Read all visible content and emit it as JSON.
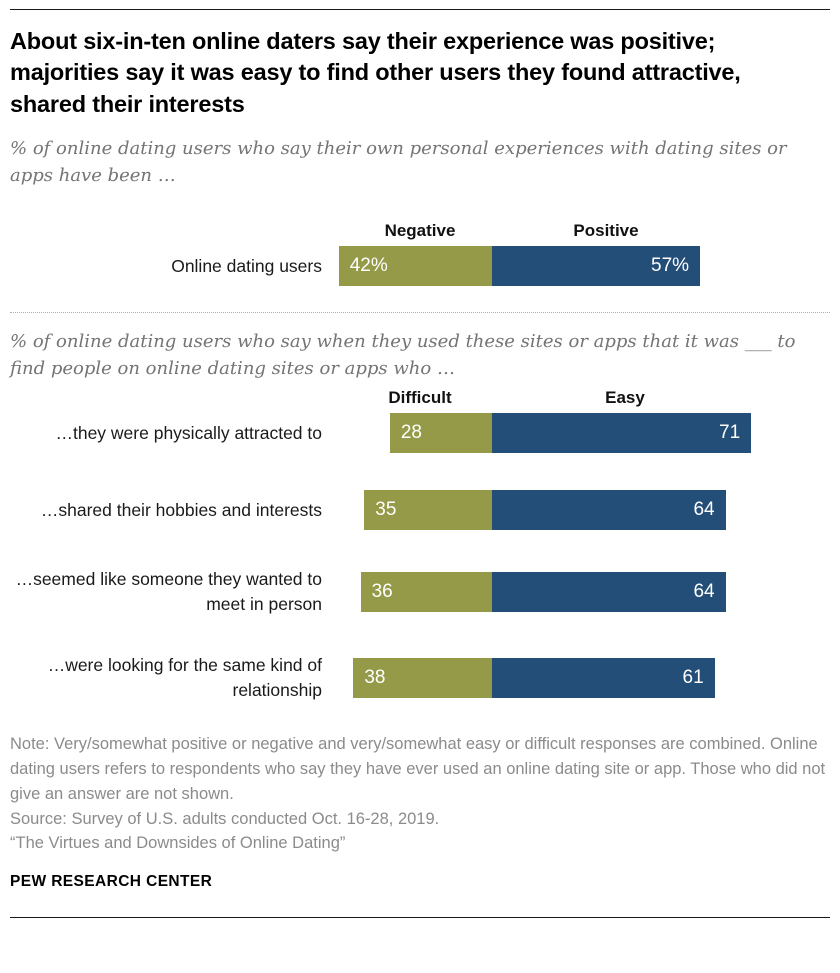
{
  "page": {
    "title": "About six-in-ten online daters say their experience was positive; majorities say it was easy to find other users they found attractive, shared their interests"
  },
  "colors": {
    "negative_olive": "#949A48",
    "positive_navy": "#234E77"
  },
  "chart_data": [
    {
      "type": "bar",
      "orientation": "horizontal-diverging",
      "subtitle": "% of online dating users who say their own personal experiences with dating sites or apps have been …",
      "legend": [
        "Negative",
        "Positive"
      ],
      "legend_position": "top",
      "categories": [
        "Online dating users"
      ],
      "series": [
        {
          "name": "Negative",
          "values": [
            42
          ]
        },
        {
          "name": "Positive",
          "values": [
            57
          ]
        }
      ],
      "value_labels": [
        [
          "42%",
          "57%"
        ]
      ],
      "xlim": [
        0,
        100
      ],
      "grid": false
    },
    {
      "type": "bar",
      "orientation": "horizontal-diverging",
      "subtitle": "% of online dating users who say when they used these sites or apps that it was ___ to find people on online dating sites or apps who …",
      "legend": [
        "Difficult",
        "Easy"
      ],
      "legend_position": "top",
      "categories": [
        "…they were physically attracted to",
        "…shared their hobbies and interests",
        "…seemed like someone they wanted to meet in person",
        "…were looking for the same kind of relationship"
      ],
      "series": [
        {
          "name": "Difficult",
          "values": [
            28,
            35,
            36,
            38
          ]
        },
        {
          "name": "Easy",
          "values": [
            71,
            64,
            64,
            61
          ]
        }
      ],
      "xlim": [
        0,
        100
      ],
      "grid": false
    }
  ],
  "footer": {
    "note": "Note: Very/somewhat positive or negative and very/somewhat easy or difficult responses are combined. Online dating users refers to respondents who say they have ever used an online dating site or app. Those who did not give an answer are not shown.",
    "source": "Source: Survey of U.S. adults conducted Oct. 16-28, 2019.",
    "report": "“The Virtues and Downsides of Online Dating”",
    "brand": "PEW RESEARCH CENTER"
  }
}
